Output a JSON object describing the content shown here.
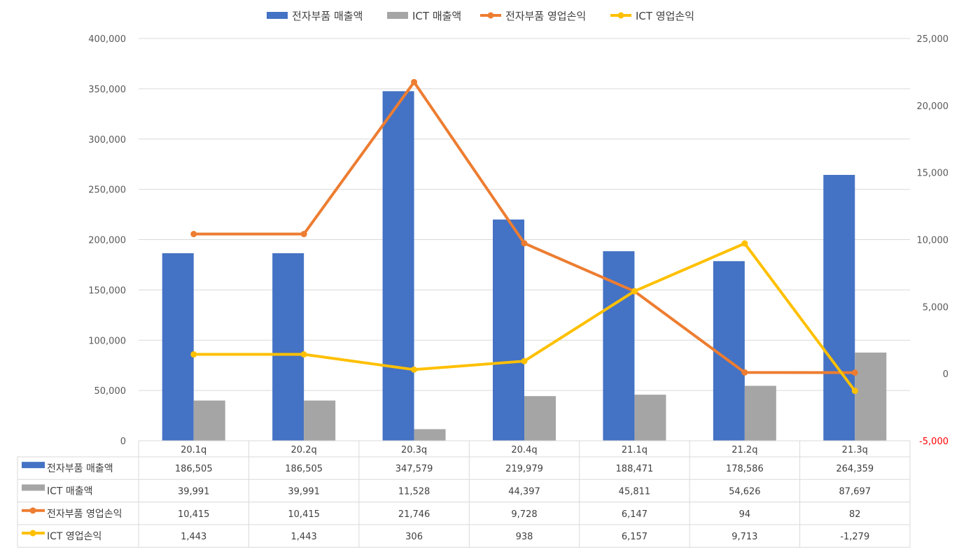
{
  "chart_data": {
    "type": "bar",
    "categories": [
      "20.1q",
      "20.2q",
      "20.3q",
      "20.4q",
      "21.1q",
      "21.2q",
      "21.3q"
    ],
    "series": [
      {
        "name": "전자부품 매출액",
        "kind": "bar",
        "axis": "left",
        "color": "#4472C4",
        "values": [
          186505,
          186505,
          347579,
          219979,
          188471,
          178586,
          264359
        ],
        "labels": [
          "186,505",
          "186,505",
          "347,579",
          "219,979",
          "188,471",
          "178,586",
          "264,359"
        ]
      },
      {
        "name": "ICT 매출액",
        "kind": "bar",
        "axis": "left",
        "color": "#A5A5A5",
        "values": [
          39991,
          39991,
          11528,
          44397,
          45811,
          54626,
          87697
        ],
        "labels": [
          "39,991",
          "39,991",
          "11,528",
          "44,397",
          "45,811",
          "54,626",
          "87,697"
        ]
      },
      {
        "name": "전자부품 영업손익",
        "kind": "line",
        "axis": "right",
        "color": "#ED7D31",
        "values": [
          10415,
          10415,
          21746,
          9728,
          6147,
          94,
          82
        ],
        "labels": [
          "10,415",
          "10,415",
          "21,746",
          "9,728",
          "6,147",
          "94",
          "82"
        ]
      },
      {
        "name": "ICT 영업손익",
        "kind": "line",
        "axis": "right",
        "color": "#FFC000",
        "values": [
          1443,
          1443,
          306,
          938,
          6157,
          9713,
          -1279
        ],
        "labels": [
          "1,443",
          "1,443",
          "306",
          "938",
          "6,157",
          "9,713",
          "-1,279"
        ]
      }
    ],
    "left_axis": {
      "min": 0,
      "max": 400000,
      "step": 50000,
      "tick_labels": [
        "0",
        "50,000",
        "100,000",
        "150,000",
        "200,000",
        "250,000",
        "300,000",
        "350,000",
        "400,000"
      ]
    },
    "right_axis": {
      "min": -5000,
      "max": 25000,
      "step": 5000,
      "tick_labels": [
        "-5,000",
        "0",
        "5,000",
        "10,000",
        "15,000",
        "20,000",
        "25,000"
      ],
      "negative_color": "#FF0000"
    },
    "legend_position": "top",
    "grid": true,
    "data_table": true
  }
}
